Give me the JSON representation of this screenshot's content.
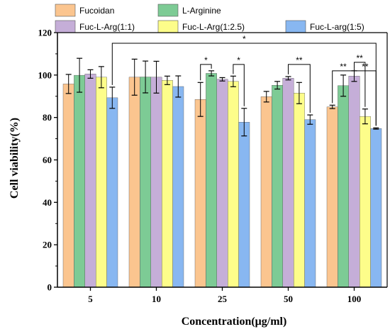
{
  "chart_data": {
    "type": "bar",
    "categories": [
      "5",
      "10",
      "25",
      "50",
      "100"
    ],
    "xlabel": "Concentration(μg/ml)",
    "ylabel": "Cell viability(%)",
    "ylim": [
      0,
      120
    ],
    "yticks": [
      0,
      20,
      40,
      60,
      80,
      100,
      120
    ],
    "grid": false,
    "legend_position": "top",
    "series": [
      {
        "name": "Fucoidan",
        "color": "#FBC58F",
        "values": [
          95.8,
          99.0,
          88.5,
          89.8,
          85.0
        ],
        "errors": [
          4.5,
          8.5,
          8.0,
          2.5,
          0.8
        ]
      },
      {
        "name": "L-Arginine",
        "color": "#7DCB95",
        "values": [
          99.9,
          99.1,
          100.8,
          95.2,
          95.0
        ],
        "errors": [
          8.0,
          7.5,
          1.2,
          1.8,
          5.0
        ]
      },
      {
        "name": "Fuc-L-Arg(1:1)",
        "color": "#C5AED8",
        "values": [
          100.5,
          99.0,
          98.0,
          98.5,
          99.5
        ],
        "errors": [
          2.0,
          7.5,
          0.8,
          0.8,
          2.5
        ]
      },
      {
        "name": "Fuc-L-Arg(1:2.5)",
        "color": "#FDFD8A",
        "values": [
          99.0,
          97.5,
          97.0,
          91.5,
          80.5
        ],
        "errors": [
          5.0,
          2.0,
          2.5,
          5.0,
          3.5
        ]
      },
      {
        "name": "Fuc-L-arg(1:5)",
        "color": "#88B7F1",
        "values": [
          89.3,
          94.6,
          77.8,
          79.0,
          74.8
        ],
        "errors": [
          5.0,
          5.0,
          6.5,
          2.2,
          0.3
        ]
      }
    ],
    "significance": [
      {
        "label": "*",
        "from_cat": 0,
        "from_series": 4,
        "to_cat": 4,
        "to_series": 4,
        "y": 115,
        "drops_to": [
          0,
          4
        ]
      },
      {
        "label": "*",
        "from_cat": 2,
        "from_series": 0,
        "to_cat": 2,
        "to_series": 1,
        "y": 105
      },
      {
        "label": "*",
        "from_cat": 2,
        "from_series": 3,
        "to_cat": 2,
        "to_series": 4,
        "y": 105
      },
      {
        "label": "**",
        "from_cat": 3,
        "from_series": 2,
        "to_cat": 3,
        "to_series": 4,
        "y": 105
      },
      {
        "label": "**",
        "from_cat": 4,
        "from_series": 0,
        "to_cat": 4,
        "to_series": 2,
        "y": 102
      },
      {
        "label": "**",
        "from_cat": 4,
        "from_series": 2,
        "to_cat": 4,
        "to_series": 3,
        "y": 106
      },
      {
        "label": "**",
        "from_cat": 4,
        "from_series": 2,
        "to_cat": 4,
        "to_series": 4,
        "y": 102
      }
    ]
  }
}
